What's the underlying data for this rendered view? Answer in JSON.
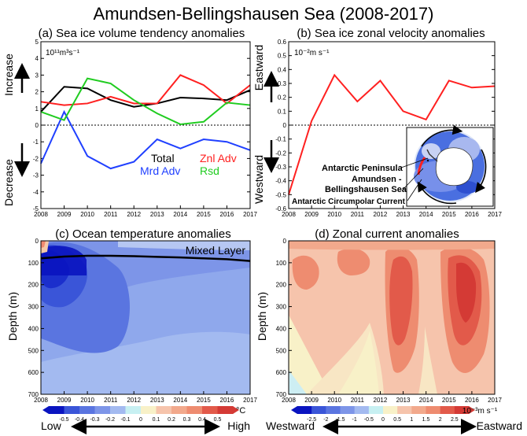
{
  "figure": {
    "title": "Amundsen-Bellingshausen Sea (2008-2017)",
    "years": [
      "2008",
      "2009",
      "2010",
      "2011",
      "2012",
      "2013",
      "2014",
      "2015",
      "2016",
      "2017"
    ]
  },
  "colors": {
    "total": "#000000",
    "znl": "#ff2020",
    "mrd": "#2040ff",
    "rsd": "#20cc20",
    "mixed": "#000000"
  },
  "chart_data": [
    {
      "type": "line",
      "title": "(a) Sea ice volume tendency anomalies",
      "unit_label": "10¹¹m³s⁻¹",
      "ylabel_top": "Increase",
      "ylabel_bottom": "Decrease",
      "x": [
        2008,
        2009,
        2010,
        2011,
        2012,
        2013,
        2014,
        2015,
        2016,
        2017
      ],
      "xlim": [
        2008,
        2017
      ],
      "ylim": [
        -5,
        5
      ],
      "yticks": [
        -5,
        -4,
        -3,
        -2,
        -1,
        0,
        1,
        2,
        3,
        4,
        5
      ],
      "series": [
        {
          "name": "Total",
          "key": "total",
          "values": [
            0.8,
            2.3,
            2.2,
            1.5,
            1.1,
            1.3,
            1.65,
            1.6,
            1.5,
            2.1
          ]
        },
        {
          "name": "Znl Adv",
          "key": "znl",
          "values": [
            1.4,
            1.2,
            1.3,
            1.7,
            1.3,
            1.3,
            3.0,
            2.4,
            1.3,
            2.4
          ]
        },
        {
          "name": "Mrd Adv",
          "key": "mrd",
          "values": [
            -2.3,
            0.8,
            -1.85,
            -2.6,
            -2.2,
            -0.85,
            -1.4,
            -0.85,
            -1.0,
            -1.5
          ]
        },
        {
          "name": "Rsd",
          "key": "rsd",
          "values": [
            0.8,
            0.3,
            2.8,
            2.5,
            1.5,
            0.7,
            0.05,
            0.2,
            1.35,
            1.2
          ]
        }
      ]
    },
    {
      "type": "line",
      "title": "(b) Sea ice zonal velocity anomalies",
      "unit_label": "10⁻²m s⁻¹",
      "ylabel_top": "Eastward",
      "ylabel_bottom": "Westward",
      "x": [
        2008,
        2009,
        2010,
        2011,
        2012,
        2013,
        2014,
        2015,
        2016,
        2017
      ],
      "xlim": [
        2008,
        2017
      ],
      "ylim": [
        -0.6,
        0.6
      ],
      "ytick_labels": [
        "-0.6",
        "-0.5",
        "-0.4",
        "-0.3",
        "-0.2",
        "-0.1",
        "0",
        "0.1",
        "0.2",
        "0.3",
        "0.4",
        "0.5",
        "0.6"
      ],
      "series": [
        {
          "name": "Zonal velocity",
          "key": "znl",
          "values": [
            -0.5,
            0.03,
            0.36,
            0.17,
            0.32,
            0.1,
            0.04,
            0.32,
            0.27,
            0.28
          ]
        }
      ],
      "inset_labels": [
        "Antarctic Peninsula",
        "Amundsen -",
        "Bellingshausen Sea",
        "Antarctic Circumpolar Current"
      ]
    },
    {
      "type": "heatmap",
      "title": "(c) Ocean temperature anomalies",
      "annotation": "Mixed Layer",
      "ylabel": "Depth (m)",
      "xlim": [
        2008,
        2017
      ],
      "ylim": [
        700,
        0
      ],
      "yticks": [
        0,
        100,
        200,
        300,
        400,
        500,
        600,
        700
      ],
      "colorbar_ticks": [
        "-0.5",
        "-0.4",
        "-0.3",
        "-0.2",
        "-0.1",
        "0",
        "0.1",
        "0.2",
        "0.3",
        "0.4",
        "0.5"
      ],
      "colorbar_unit": "°C",
      "colorbar_left": "Low",
      "colorbar_right": "High",
      "mixed_layer_depth": [
        {
          "x": 2008,
          "d": 80
        },
        {
          "x": 2009,
          "d": 72
        },
        {
          "x": 2010,
          "d": 68
        },
        {
          "x": 2011,
          "d": 68
        },
        {
          "x": 2012,
          "d": 70
        },
        {
          "x": 2013,
          "d": 73
        },
        {
          "x": 2014,
          "d": 76
        },
        {
          "x": 2015,
          "d": 80
        },
        {
          "x": 2016,
          "d": 84
        },
        {
          "x": 2017,
          "d": 92
        }
      ]
    },
    {
      "type": "heatmap",
      "title": "(d) Zonal current anomalies",
      "ylabel": "Depth (m)",
      "xlim": [
        2008,
        2017
      ],
      "ylim": [
        700,
        0
      ],
      "yticks": [
        0,
        100,
        200,
        300,
        400,
        500,
        600,
        700
      ],
      "colorbar_ticks": [
        "-2.5",
        "-2",
        "-1.5",
        "-1",
        "-0.5",
        "0",
        "0.5",
        "1",
        "1.5",
        "2",
        "2.5"
      ],
      "colorbar_unit": "10⁻³m s⁻¹",
      "colorbar_left": "Westward",
      "colorbar_right": "Eastward"
    }
  ]
}
